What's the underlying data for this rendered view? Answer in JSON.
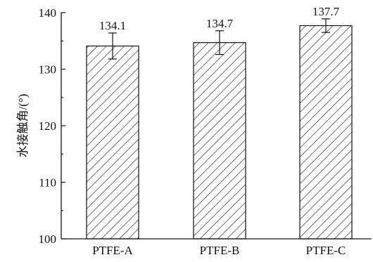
{
  "chart_data": {
    "type": "bar",
    "title": "",
    "xlabel": "",
    "ylabel": "水接触角/(°)",
    "ylim": [
      100,
      140
    ],
    "yticks": [
      100,
      110,
      120,
      130,
      140
    ],
    "categories": [
      "PTFE-A",
      "PTFE-B",
      "PTFE-C"
    ],
    "values": [
      134.1,
      134.7,
      137.7
    ],
    "value_labels": [
      "134.1",
      "134.7",
      "137.7"
    ],
    "error_bars": [
      2.3,
      2.1,
      1.2
    ],
    "bar_pattern": "diagonal-hatch",
    "grid": false,
    "legend": "none",
    "colors": {
      "bar_fill": "#ffffff",
      "hatch": "#222222",
      "axis": "#111111"
    }
  }
}
